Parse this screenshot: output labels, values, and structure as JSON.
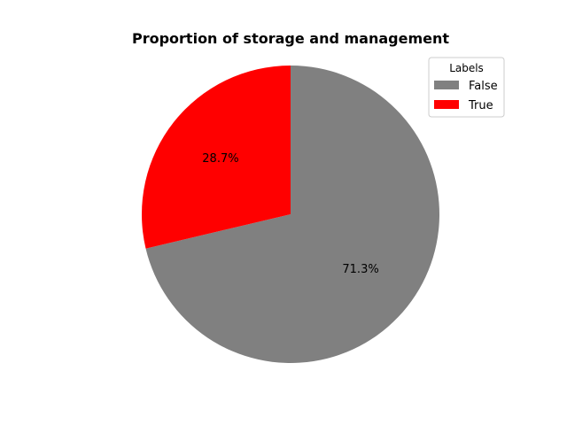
{
  "chart_data": {
    "type": "pie",
    "title": "Proportion of storage and management",
    "categories": [
      "False",
      "True"
    ],
    "values": [
      71.3,
      28.7
    ],
    "value_labels": [
      "71.3%",
      "28.7%"
    ],
    "colors": [
      "#808080",
      "#ff0000"
    ],
    "start_angle_deg": 90,
    "direction": "clockwise",
    "legend": {
      "title": "Labels",
      "entries": [
        "False",
        "True"
      ],
      "placement": "top-right"
    }
  }
}
